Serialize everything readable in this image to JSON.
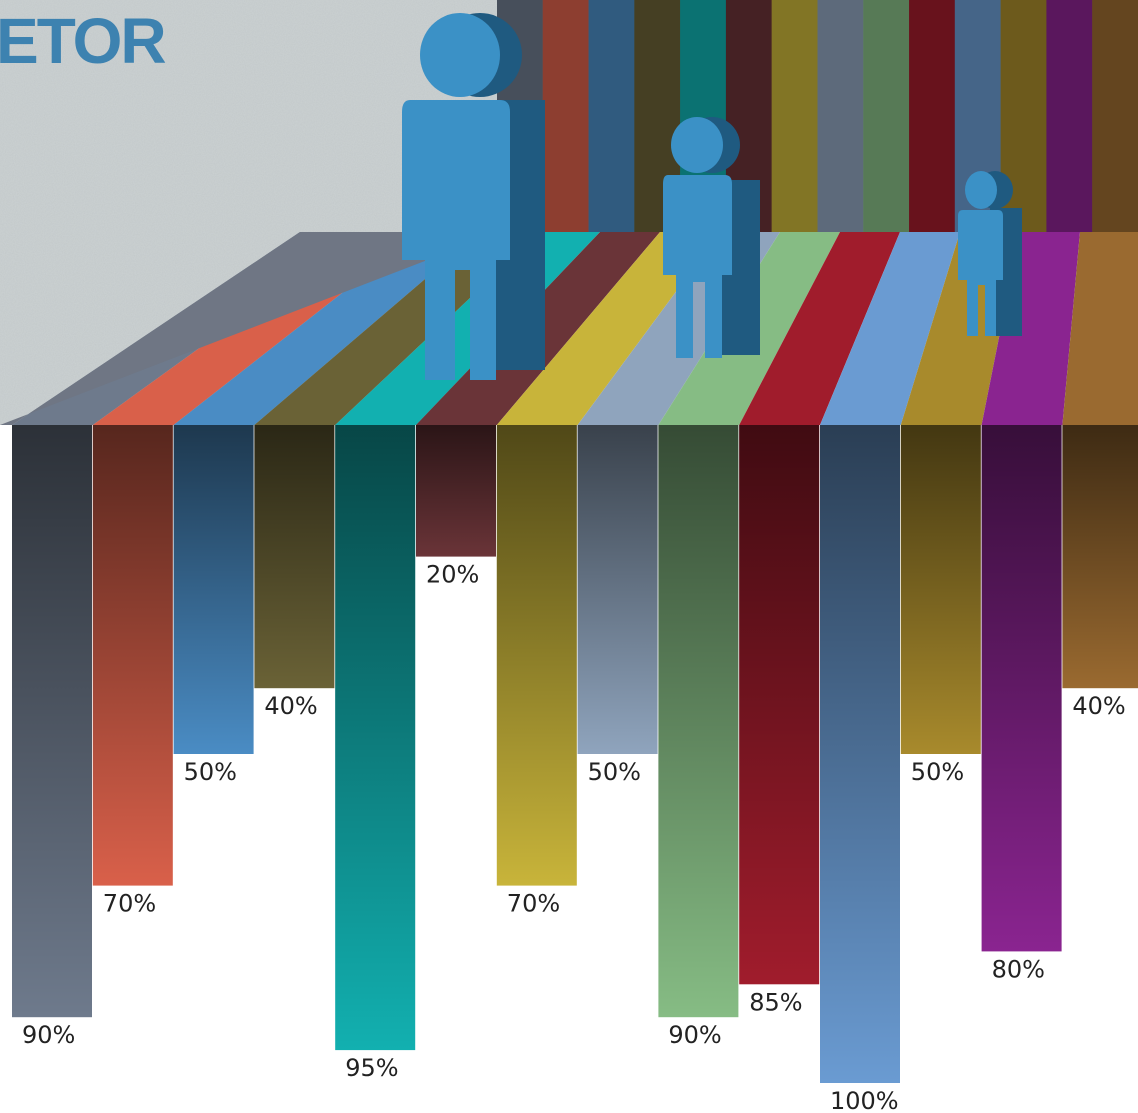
{
  "chart_data": {
    "type": "bar",
    "title": "ETOR",
    "values": [
      90,
      70,
      50,
      40,
      95,
      20,
      70,
      50,
      90,
      85,
      100,
      50,
      80,
      40
    ],
    "value_labels": [
      "90%",
      "70%",
      "50%",
      "40%",
      "95%",
      "20%",
      "70%",
      "50%",
      "90%",
      "85%",
      "100%",
      "50%",
      "80%",
      "40%"
    ],
    "colors": [
      "#6e7a8c",
      "#d9604a",
      "#4a8cc4",
      "#6a6236",
      "#12b0b0",
      "#6a3438",
      "#c8b43a",
      "#8fa4bd",
      "#86bc84",
      "#a01c2c",
      "#6a9bd2",
      "#a88a2c",
      "#8a2490",
      "#9a6a30"
    ],
    "ylim": [
      0,
      100
    ]
  }
}
